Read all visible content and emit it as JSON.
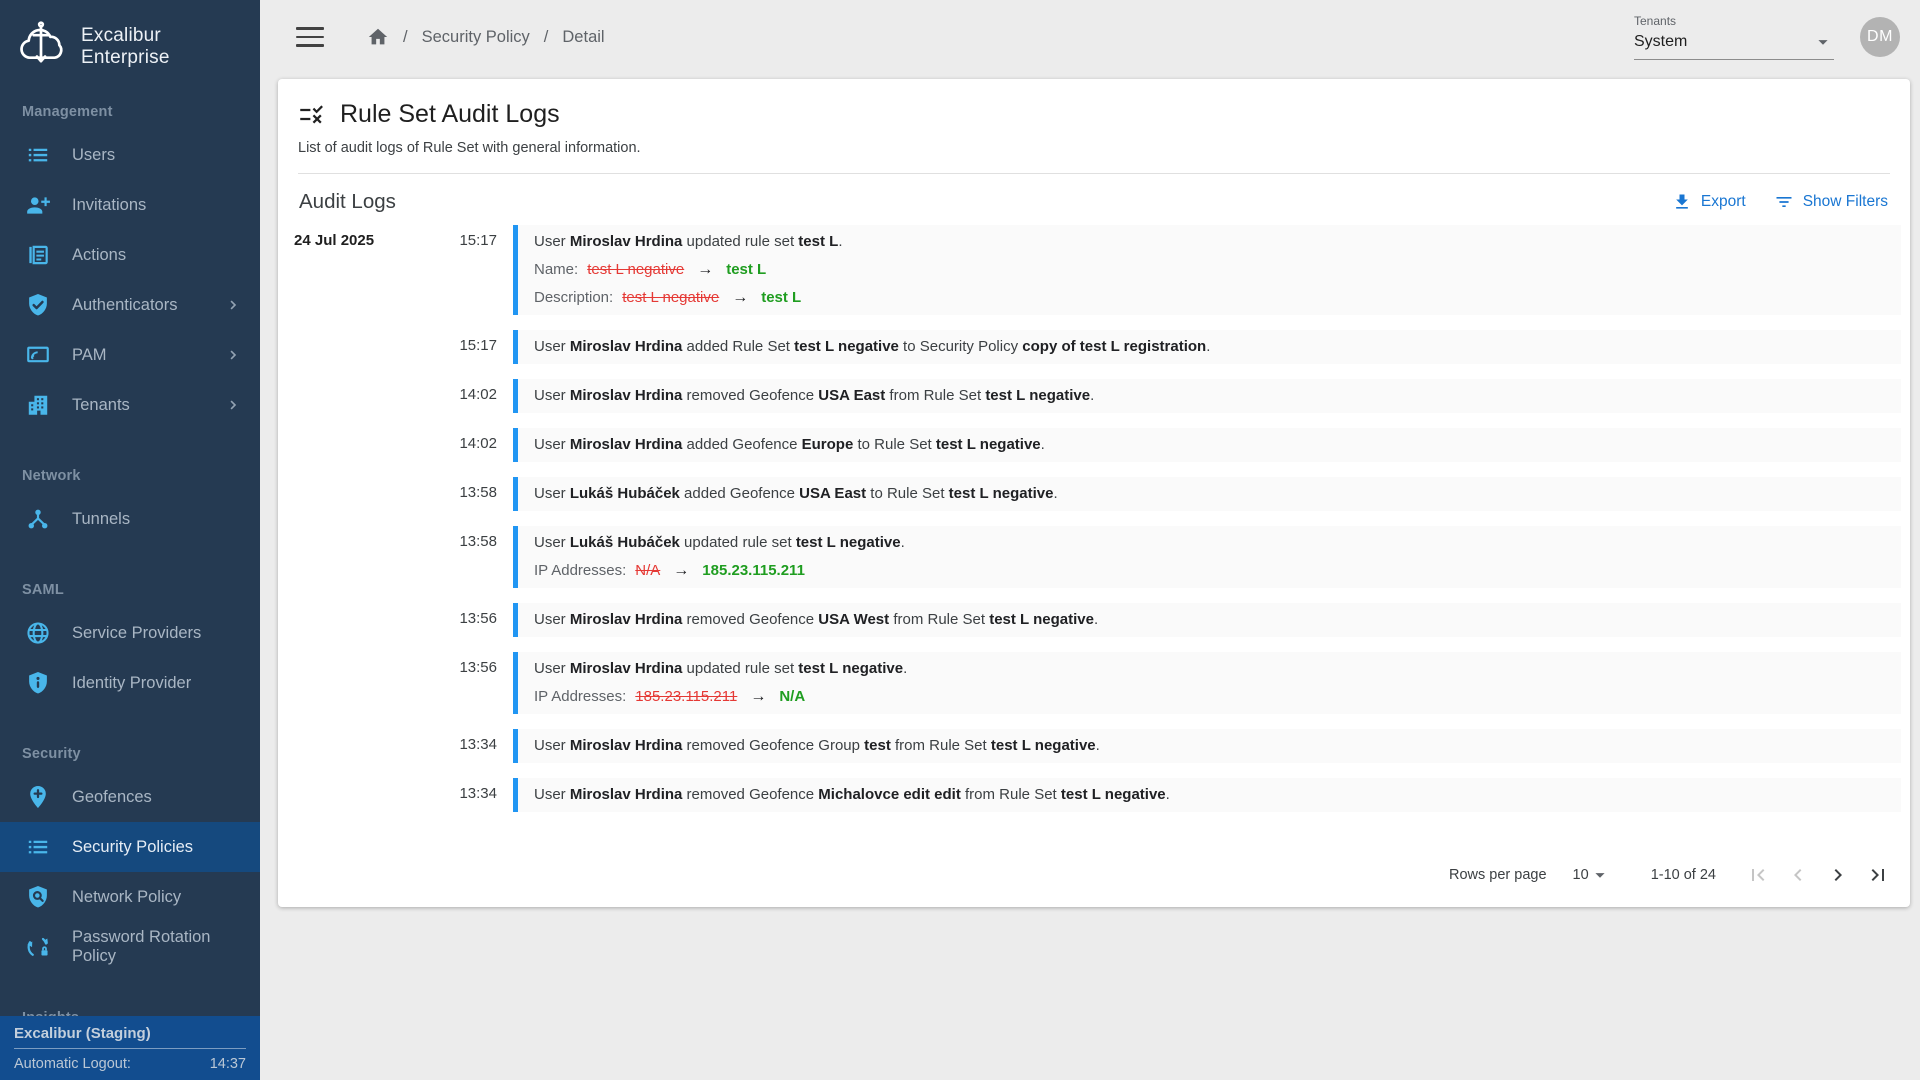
{
  "sidebar": {
    "brand": "Excalibur Enterprise",
    "sections": [
      {
        "label": "Management",
        "items": [
          {
            "label": "Users",
            "icon": "list-icon"
          },
          {
            "label": "Invitations",
            "icon": "person-add-icon"
          },
          {
            "label": "Actions",
            "icon": "article-icon"
          },
          {
            "label": "Authenticators",
            "icon": "shield-check-icon",
            "expandable": true
          },
          {
            "label": "PAM",
            "icon": "screen-share-icon",
            "expandable": true
          },
          {
            "label": "Tenants",
            "icon": "building-icon",
            "expandable": true
          }
        ]
      },
      {
        "label": "Network",
        "items": [
          {
            "label": "Tunnels",
            "icon": "network-nodes-icon"
          }
        ]
      },
      {
        "label": "SAML",
        "items": [
          {
            "label": "Service Providers",
            "icon": "globe-icon"
          },
          {
            "label": "Identity Provider",
            "icon": "shield-info-icon"
          }
        ]
      },
      {
        "label": "Security",
        "items": [
          {
            "label": "Geofences",
            "icon": "location-pin-plus-icon"
          },
          {
            "label": "Security Policies",
            "icon": "list-icon",
            "active": true
          },
          {
            "label": "Network Policy",
            "icon": "shield-search-icon"
          },
          {
            "label": "Password Rotation Policy",
            "icon": "rotate-lock-icon"
          }
        ]
      },
      {
        "label": "Insights",
        "items": []
      }
    ],
    "footer": {
      "env": "Excalibur (Staging)",
      "logout_label": "Automatic Logout:",
      "logout_time": "14:37"
    }
  },
  "topbar": {
    "breadcrumb": [
      "Security Policy",
      "Detail"
    ],
    "separator": "/",
    "tenants_label": "Tenants",
    "tenant_value": "System",
    "avatar": "DM"
  },
  "page": {
    "title": "Rule Set Audit Logs",
    "subtitle": "List of audit logs of Rule Set with general information.",
    "section_title": "Audit Logs",
    "export_label": "Export",
    "show_filters_label": "Show Filters"
  },
  "log": {
    "entries": [
      {
        "date": "24 Jul 2025",
        "time": "15:17",
        "message": [
          [
            "User "
          ],
          [
            "Miroslav Hrdina",
            "b"
          ],
          [
            " updated rule set "
          ],
          [
            "test L",
            "b"
          ],
          [
            "."
          ]
        ],
        "changes": [
          {
            "label": "Name:",
            "old": "test L negative",
            "new": "test L"
          },
          {
            "label": "Description:",
            "old": "test L negative",
            "new": "test L"
          }
        ]
      },
      {
        "time": "15:17",
        "message": [
          [
            "User "
          ],
          [
            "Miroslav Hrdina",
            "b"
          ],
          [
            " added Rule Set "
          ],
          [
            "test L negative",
            "b"
          ],
          [
            " to Security Policy "
          ],
          [
            "copy of test L registration",
            "b"
          ],
          [
            "."
          ]
        ]
      },
      {
        "time": "14:02",
        "message": [
          [
            "User "
          ],
          [
            "Miroslav Hrdina",
            "b"
          ],
          [
            " removed Geofence "
          ],
          [
            "USA East",
            "b"
          ],
          [
            " from Rule Set "
          ],
          [
            "test L negative",
            "b"
          ],
          [
            "."
          ]
        ]
      },
      {
        "time": "14:02",
        "message": [
          [
            "User "
          ],
          [
            "Miroslav Hrdina",
            "b"
          ],
          [
            " added Geofence "
          ],
          [
            "Europe",
            "b"
          ],
          [
            " to Rule Set "
          ],
          [
            "test L negative",
            "b"
          ],
          [
            "."
          ]
        ]
      },
      {
        "time": "13:58",
        "message": [
          [
            "User "
          ],
          [
            "Lukáš Hubáček",
            "b"
          ],
          [
            " added Geofence "
          ],
          [
            "USA East",
            "b"
          ],
          [
            " to Rule Set "
          ],
          [
            "test L negative",
            "b"
          ],
          [
            "."
          ]
        ]
      },
      {
        "time": "13:58",
        "message": [
          [
            "User "
          ],
          [
            "Lukáš Hubáček",
            "b"
          ],
          [
            " updated rule set "
          ],
          [
            "test L negative",
            "b"
          ],
          [
            "."
          ]
        ],
        "changes": [
          {
            "label": "IP Addresses:",
            "old": "N/A",
            "new": "185.23.115.211"
          }
        ]
      },
      {
        "time": "13:56",
        "message": [
          [
            "User "
          ],
          [
            "Miroslav Hrdina",
            "b"
          ],
          [
            " removed Geofence "
          ],
          [
            "USA West",
            "b"
          ],
          [
            " from Rule Set "
          ],
          [
            "test L negative",
            "b"
          ],
          [
            "."
          ]
        ]
      },
      {
        "time": "13:56",
        "message": [
          [
            "User "
          ],
          [
            "Miroslav Hrdina",
            "b"
          ],
          [
            " updated rule set "
          ],
          [
            "test L negative",
            "b"
          ],
          [
            "."
          ]
        ],
        "changes": [
          {
            "label": "IP Addresses:",
            "old": "185.23.115.211",
            "new": "N/A"
          }
        ]
      },
      {
        "time": "13:34",
        "message": [
          [
            "User "
          ],
          [
            "Miroslav Hrdina",
            "b"
          ],
          [
            " removed Geofence Group "
          ],
          [
            "test",
            "b"
          ],
          [
            " from Rule Set "
          ],
          [
            "test L negative",
            "b"
          ],
          [
            "."
          ]
        ]
      },
      {
        "time": "13:34",
        "message": [
          [
            "User "
          ],
          [
            "Miroslav Hrdina",
            "b"
          ],
          [
            " removed Geofence "
          ],
          [
            "Michalovce edit edit",
            "b"
          ],
          [
            " from Rule Set "
          ],
          [
            "test L negative",
            "b"
          ],
          [
            "."
          ]
        ]
      }
    ]
  },
  "pagination": {
    "rows_per_page_label": "Rows per page",
    "rows_per_page_value": "10",
    "range": "1-10 of 24"
  },
  "colors": {
    "sidebar_bg": "#253a52",
    "sidebar_active_bg": "#15497e",
    "sidebar_footer_bg": "#124d8f",
    "sidebar_icon": "#49b6ea",
    "action_blue": "#1976d2",
    "entry_border_blue": "#2196f3",
    "removed_red": "#e53935",
    "added_green": "#1f9d20",
    "page_bg": "#ececec"
  }
}
